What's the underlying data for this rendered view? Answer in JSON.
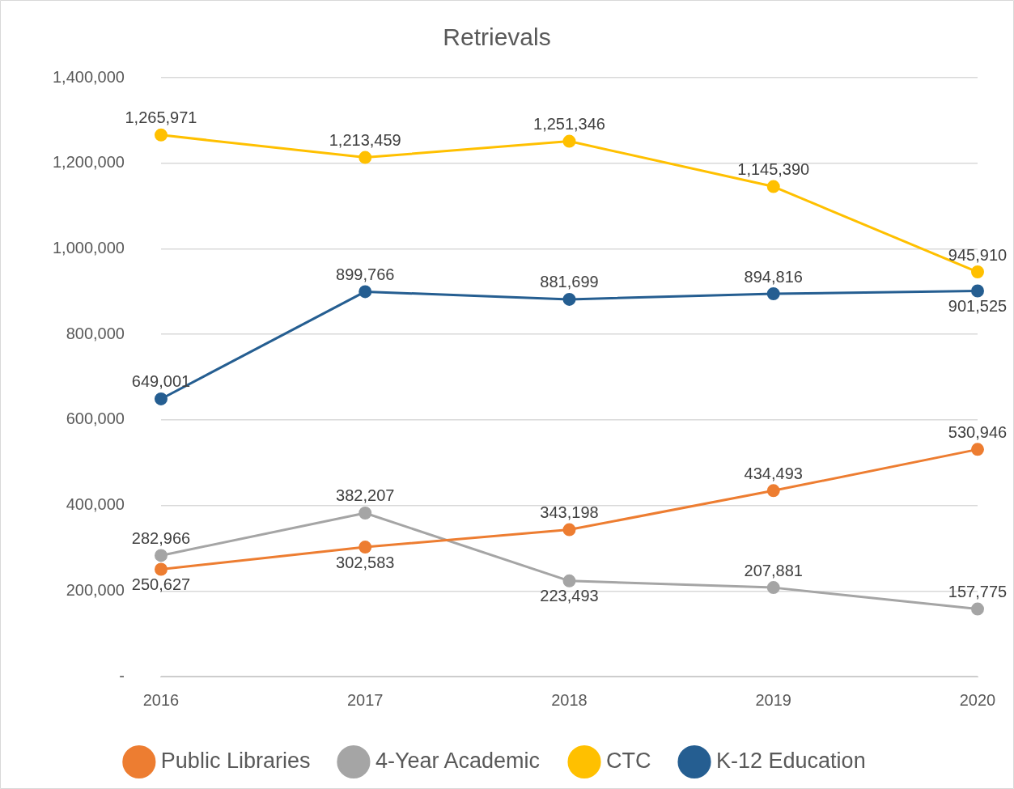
{
  "chart_data": {
    "type": "line",
    "title": "Retrievals",
    "categories": [
      "2016",
      "2017",
      "2018",
      "2019",
      "2020"
    ],
    "series": [
      {
        "name": "Public Libraries",
        "color": "#ed7d31",
        "values": [
          250627,
          302583,
          343198,
          434493,
          530946
        ],
        "value_labels": [
          "250,627",
          "302,583",
          "343,198",
          "434,493",
          "530,946"
        ]
      },
      {
        "name": "4-Year Academic",
        "color": "#a5a5a5",
        "values": [
          282966,
          382207,
          223493,
          207881,
          157775
        ],
        "value_labels": [
          "282,966",
          "382,207",
          "223,493",
          "207,881",
          "157,775"
        ]
      },
      {
        "name": "CTC",
        "color": "#ffc000",
        "values": [
          1265971,
          1213459,
          1251346,
          1145390,
          945910
        ],
        "value_labels": [
          "1,265,971",
          "1,213,459",
          "1,251,346",
          "1,145,390",
          "945,910"
        ]
      },
      {
        "name": "K-12 Education",
        "color": "#255e91",
        "values": [
          649001,
          899766,
          881699,
          894816,
          901525
        ],
        "value_labels": [
          "649,001",
          "899,766",
          "881,699",
          "894,816",
          "901,525"
        ]
      }
    ],
    "ylim": [
      0,
      1400000
    ],
    "yticks": [
      {
        "value": 0,
        "label": "-"
      },
      {
        "value": 200000,
        "label": "200,000"
      },
      {
        "value": 400000,
        "label": "400,000"
      },
      {
        "value": 600000,
        "label": "600,000"
      },
      {
        "value": 800000,
        "label": "800,000"
      },
      {
        "value": 1000000,
        "label": "1,000,000"
      },
      {
        "value": 1200000,
        "label": "1,200,000"
      },
      {
        "value": 1400000,
        "label": "1,400,000"
      }
    ],
    "grid": "y",
    "legend": "bottom",
    "marker": "circle",
    "line_style": "solid"
  }
}
